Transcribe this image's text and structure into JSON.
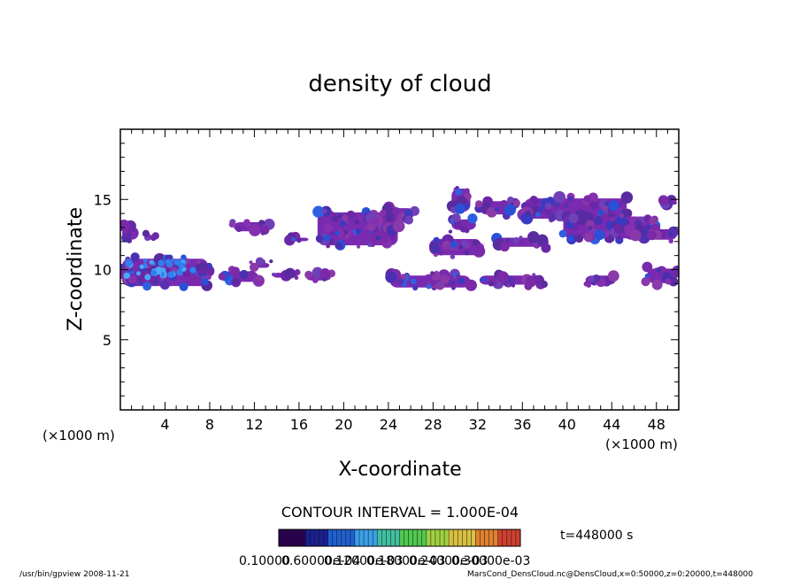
{
  "chart_data": {
    "type": "heatmap",
    "title": "density of cloud",
    "xlabel": "X-coordinate",
    "ylabel": "Z-coordinate",
    "x_unit": "(×1000 m)",
    "y_unit": "(×1000 m)",
    "xlim": [
      0,
      50
    ],
    "ylim": [
      0,
      20
    ],
    "x_ticks": [
      "4",
      "8",
      "12",
      "16",
      "20",
      "24",
      "28",
      "32",
      "36",
      "40",
      "44",
      "48"
    ],
    "y_ticks": [
      "5",
      "10",
      "15"
    ],
    "contour_interval": "CONTOUR INTERVAL = 1.000E-04",
    "time_label": "t=448000 s",
    "colorbar_labels": [
      "0.10000",
      "0.60000e-04",
      "0.12000e-03",
      "0.18000e-03",
      "0.24000e-03",
      "0.30000e-03"
    ],
    "colorbar_colors": [
      "#2a0050",
      "#1a2090",
      "#1f5fd0",
      "#3aa0e8",
      "#40c0a0",
      "#50c850",
      "#a0d040",
      "#d8c040",
      "#e08030",
      "#d04030"
    ],
    "cloud_regions": [
      {
        "x": [
          0,
          1.8
        ],
        "z": [
          12.0,
          13.2
        ],
        "density": 0.3
      },
      {
        "x": [
          2.2,
          3.2
        ],
        "z": [
          12.0,
          12.6
        ],
        "density": 0.25
      },
      {
        "x": [
          0,
          8.0
        ],
        "z": [
          8.7,
          10.9
        ],
        "density": 1.0
      },
      {
        "x": [
          7.0,
          8.0
        ],
        "z": [
          9.7,
          10.3
        ],
        "density": 0.3
      },
      {
        "x": [
          9.0,
          12.5
        ],
        "z": [
          9.0,
          10.0
        ],
        "density": 0.45
      },
      {
        "x": [
          11.5,
          13.5
        ],
        "z": [
          10.0,
          10.6
        ],
        "density": 0.25
      },
      {
        "x": [
          10.0,
          13.5
        ],
        "z": [
          12.6,
          13.5
        ],
        "density": 0.3
      },
      {
        "x": [
          15.0,
          17.0
        ],
        "z": [
          11.9,
          12.4
        ],
        "density": 0.25
      },
      {
        "x": [
          17.5,
          25.0
        ],
        "z": [
          11.6,
          14.2
        ],
        "density": 0.55
      },
      {
        "x": [
          13.5,
          16.0
        ],
        "z": [
          9.3,
          9.9
        ],
        "density": 0.25
      },
      {
        "x": [
          16.5,
          19.0
        ],
        "z": [
          9.1,
          9.8
        ],
        "density": 0.3
      },
      {
        "x": [
          19.5,
          23.0
        ],
        "z": [
          12.7,
          13.4
        ],
        "density": 0.25
      },
      {
        "x": [
          23.5,
          26.5
        ],
        "z": [
          13.5,
          14.5
        ],
        "density": 0.25
      },
      {
        "x": [
          24.0,
          31.5
        ],
        "z": [
          8.6,
          9.7
        ],
        "density": 0.6
      },
      {
        "x": [
          27.0,
          30.0
        ],
        "z": [
          9.0,
          9.8
        ],
        "density": 0.5
      },
      {
        "x": [
          27.5,
          32.5
        ],
        "z": [
          10.9,
          12.3
        ],
        "density": 0.65
      },
      {
        "x": [
          29.5,
          32.0
        ],
        "z": [
          12.7,
          13.7
        ],
        "density": 0.3
      },
      {
        "x": [
          29.5,
          31.5
        ],
        "z": [
          14.0,
          15.9
        ],
        "density": 0.35
      },
      {
        "x": [
          32.0,
          35.5
        ],
        "z": [
          13.8,
          15.0
        ],
        "density": 0.3
      },
      {
        "x": [
          32.0,
          38.0
        ],
        "z": [
          8.8,
          9.7
        ],
        "density": 0.3
      },
      {
        "x": [
          33.5,
          38.5
        ],
        "z": [
          11.5,
          12.4
        ],
        "density": 0.3
      },
      {
        "x": [
          36.0,
          45.5
        ],
        "z": [
          13.5,
          15.2
        ],
        "density": 0.5
      },
      {
        "x": [
          39.5,
          48.0
        ],
        "z": [
          12.1,
          13.9
        ],
        "density": 0.5
      },
      {
        "x": [
          45.0,
          50.0
        ],
        "z": [
          12.0,
          13.0
        ],
        "density": 0.4
      },
      {
        "x": [
          41.5,
          44.5
        ],
        "z": [
          8.8,
          9.7
        ],
        "density": 0.3
      },
      {
        "x": [
          47.0,
          50.0
        ],
        "z": [
          8.9,
          10.2
        ],
        "density": 0.5
      },
      {
        "x": [
          48.5,
          50.0
        ],
        "z": [
          14.5,
          15.0
        ],
        "density": 0.25
      }
    ]
  },
  "footer": {
    "program": "/usr/bin/gpview   2008-11-21",
    "source": "MarsCond_DensCloud.nc@DensCloud,x=0:50000,z=0:20000,t=448000"
  }
}
